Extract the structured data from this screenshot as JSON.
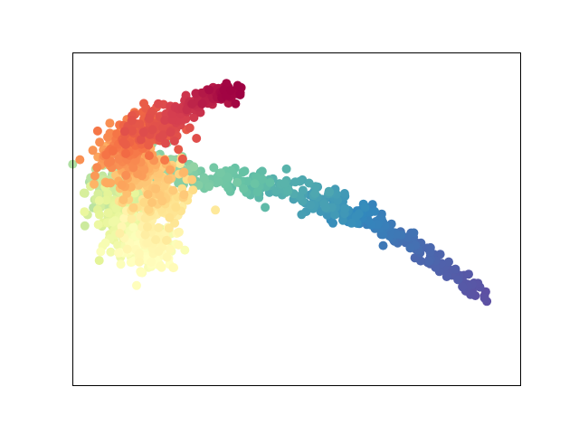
{
  "chart_data": {
    "type": "scatter",
    "title": "",
    "xlabel": "",
    "ylabel": "",
    "axes_visible": false,
    "xlim": [
      -1.1,
      1.05
    ],
    "ylim": [
      -1.0,
      0.85
    ],
    "colormap": "Spectral",
    "colormap_stops": [
      "#9e0142",
      "#d53e4f",
      "#f46d43",
      "#fdae61",
      "#fee08b",
      "#ffffbf",
      "#e6f598",
      "#abdda4",
      "#66c2a5",
      "#3288bd",
      "#5e4fa2"
    ],
    "point_color": "varies along manifold (Spectral colormap, t in 0..1)",
    "series": [
      {
        "manifold_path_t_x_y": [
          [
            0.0,
            -0.33,
            0.64
          ],
          [
            0.05,
            -0.44,
            0.6
          ],
          [
            0.1,
            -0.58,
            0.52
          ],
          [
            0.15,
            -0.7,
            0.45
          ],
          [
            0.2,
            -0.8,
            0.38
          ],
          [
            0.25,
            -0.86,
            0.3
          ],
          [
            0.3,
            -0.8,
            0.22
          ],
          [
            0.35,
            -0.72,
            0.16
          ],
          [
            0.4,
            -0.64,
            0.05
          ],
          [
            0.45,
            -0.7,
            -0.1
          ],
          [
            0.5,
            -0.74,
            -0.28
          ],
          [
            0.55,
            -0.8,
            -0.2
          ],
          [
            0.6,
            -0.86,
            -0.05
          ],
          [
            0.65,
            -0.9,
            0.06
          ],
          [
            0.7,
            -0.9,
            0.18
          ],
          [
            0.75,
            -0.62,
            0.2
          ],
          [
            0.8,
            -0.28,
            0.14
          ],
          [
            0.85,
            0.02,
            0.06
          ],
          [
            0.9,
            0.28,
            -0.05
          ],
          [
            0.95,
            0.55,
            -0.22
          ],
          [
            1.0,
            0.88,
            -0.52
          ]
        ]
      }
    ]
  }
}
